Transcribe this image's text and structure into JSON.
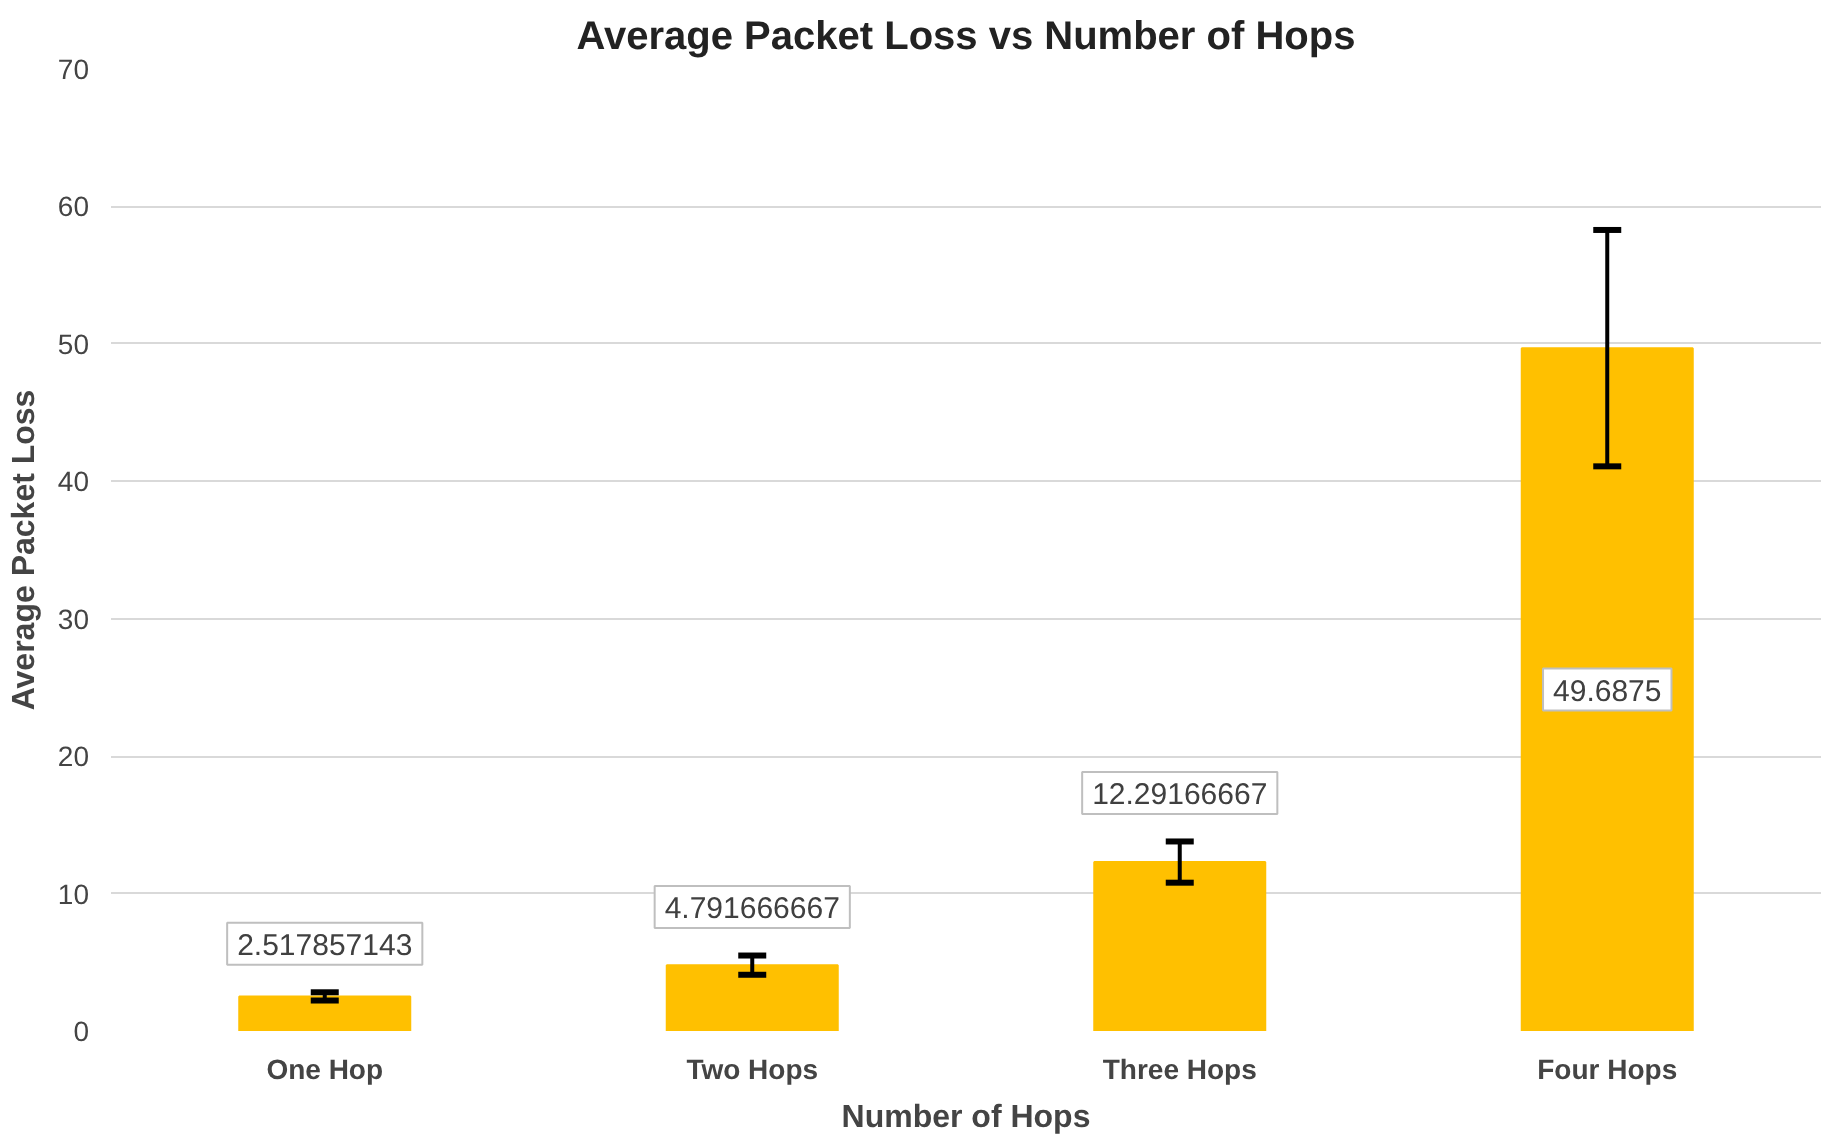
{
  "chart_data": {
    "type": "bar",
    "title": "Average Packet Loss vs Number of Hops",
    "xlabel": "Number of Hops",
    "ylabel": "Average Packet Loss",
    "categories": [
      "One Hop",
      "Two Hops",
      "Three Hops",
      "Four Hops"
    ],
    "values": [
      2.517857143,
      4.791666667,
      12.29166667,
      49.6875
    ],
    "errors": [
      0.3,
      0.7,
      1.5,
      8.6
    ],
    "color": "#ffc000",
    "ylim": [
      0,
      70
    ],
    "yticks": [
      0,
      10,
      20,
      30,
      40,
      50,
      60,
      70
    ],
    "grid": "y",
    "data_labels": true
  }
}
